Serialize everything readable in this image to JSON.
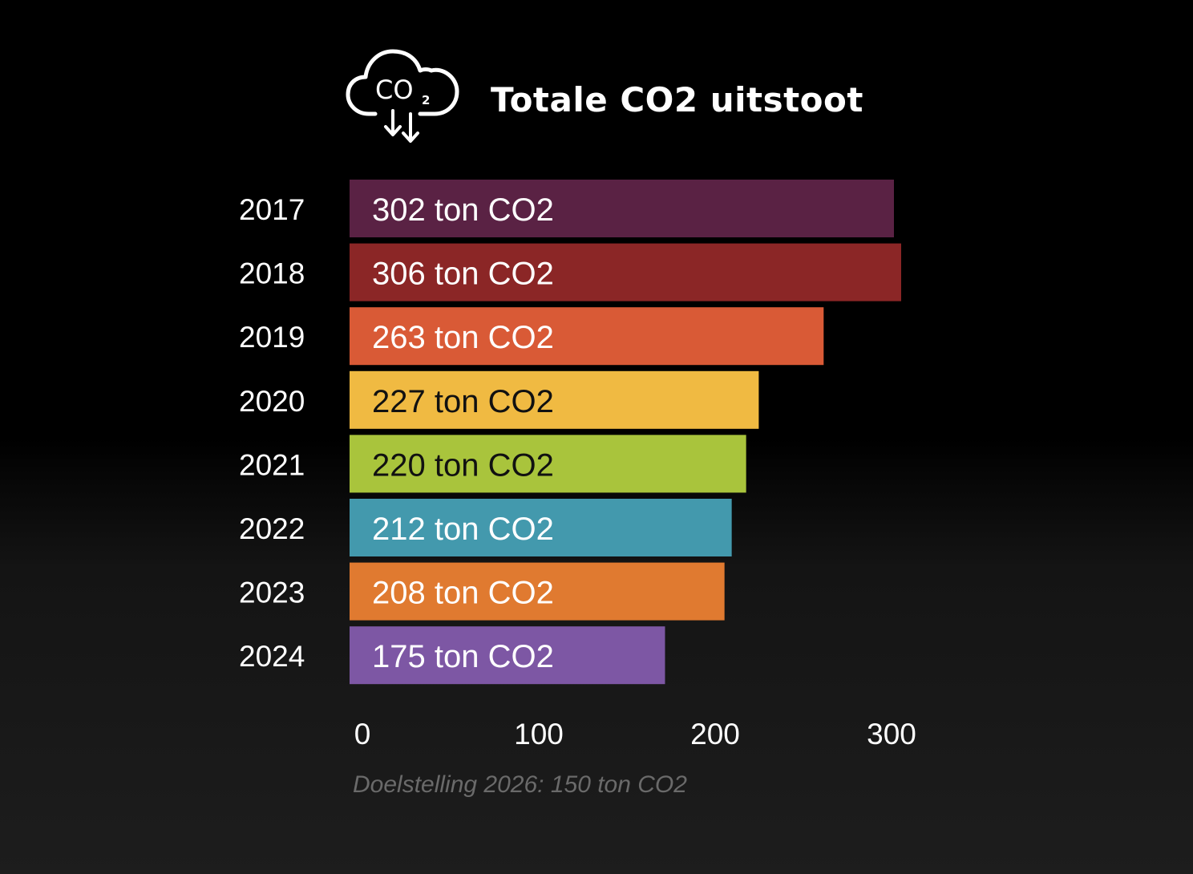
{
  "title": "Totale CO2 uitstoot",
  "icon": "co2-cloud-icon",
  "note": "Doelstelling 2026: 150 ton CO2",
  "chart_data": {
    "type": "bar",
    "orientation": "horizontal",
    "title": "Totale CO2 uitstoot",
    "categories": [
      "2017",
      "2018",
      "2019",
      "2020",
      "2021",
      "2022",
      "2023",
      "2024"
    ],
    "values": [
      302,
      306,
      263,
      227,
      220,
      212,
      208,
      175
    ],
    "data_labels": [
      "302 ton CO2",
      "306 ton CO2",
      "263 ton CO2",
      "227 ton CO2",
      "220 ton CO2",
      "212 ton CO2",
      "208 ton CO2",
      "175 ton CO2"
    ],
    "colors": [
      "#5a2244",
      "#8b2626",
      "#d95a36",
      "#f0ba42",
      "#a9c43c",
      "#4399ad",
      "#e07a30",
      "#7d57a4"
    ],
    "label_colors": [
      "#ffffff",
      "#ffffff",
      "#ffffff",
      "#111111",
      "#111111",
      "#ffffff",
      "#ffffff",
      "#ffffff"
    ],
    "x_ticks": [
      0,
      100,
      200,
      300
    ],
    "xlim": [
      0,
      306
    ],
    "xlabel": "",
    "ylabel": "",
    "grid": false,
    "legend": "none"
  }
}
